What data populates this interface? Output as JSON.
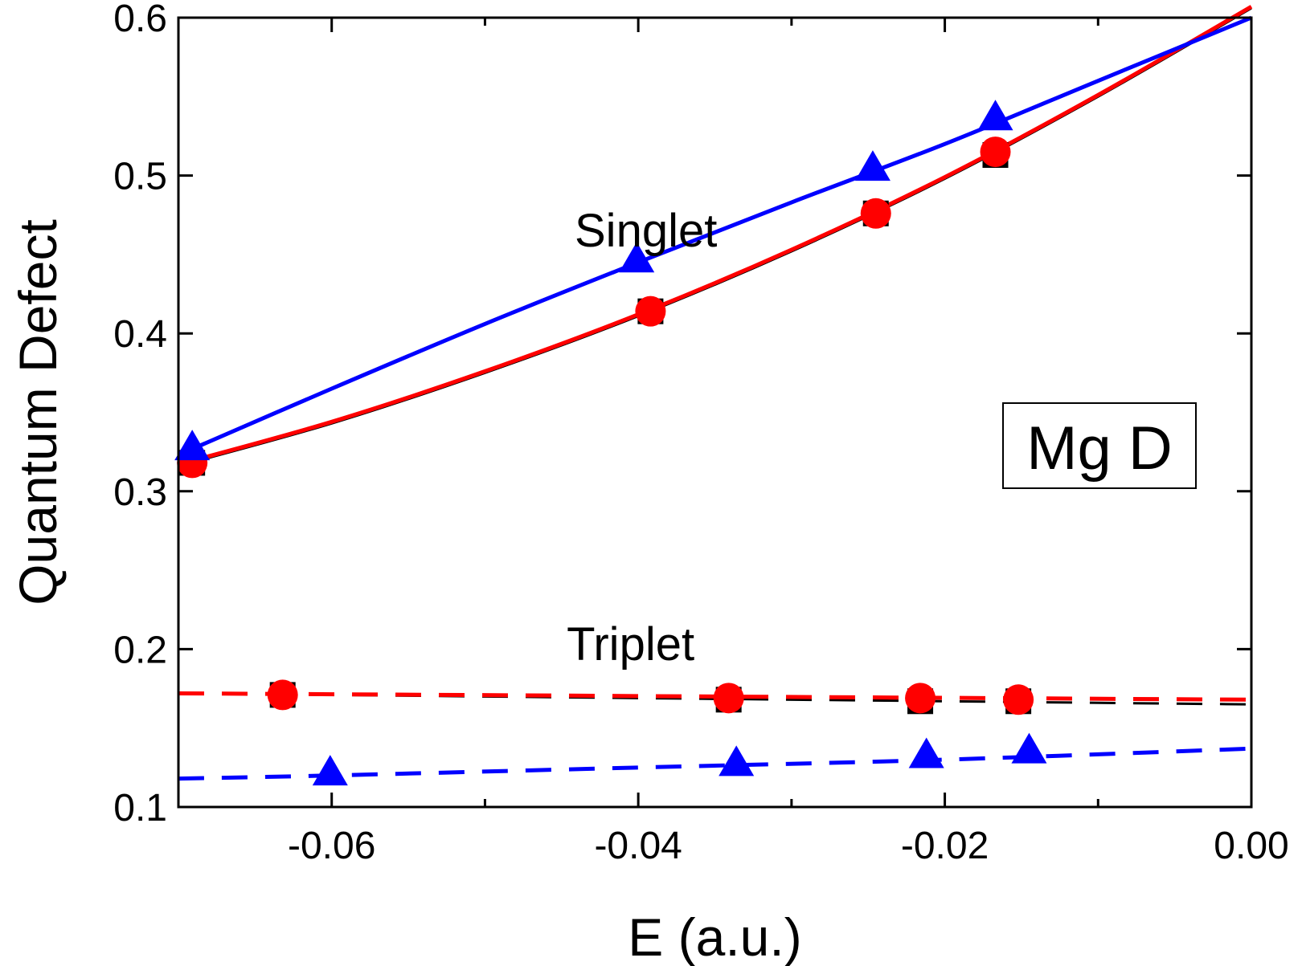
{
  "chart_data": {
    "type": "line",
    "xlabel": "E (a.u.)",
    "ylabel": "Quantum Defect",
    "xlim": [
      -0.07,
      0.0
    ],
    "ylim": [
      0.1,
      0.6
    ],
    "x_ticks": [
      -0.06,
      -0.04,
      -0.02,
      0.0
    ],
    "x_tick_labels": [
      "-0.06",
      "-0.04",
      "-0.02",
      "0.00"
    ],
    "x_minor_ticks": [
      -0.07,
      -0.05,
      -0.03,
      -0.01
    ],
    "y_ticks": [
      0.1,
      0.2,
      0.3,
      0.4,
      0.5,
      0.6
    ],
    "y_tick_labels": [
      "0.1",
      "0.2",
      "0.3",
      "0.4",
      "0.5",
      "0.6"
    ],
    "grid": false,
    "annotations": [
      {
        "text": "Singlet",
        "x": -0.0395,
        "y": 0.455
      },
      {
        "text": "Triplet",
        "x": -0.0405,
        "y": 0.193
      }
    ],
    "legend_box": {
      "text": "Mg D",
      "placement": "center-right"
    },
    "colors": {
      "black": "#000000",
      "red": "#ff0000",
      "blue": "#0000ff"
    },
    "series": [
      {
        "group": "singlet",
        "color": "#000000",
        "marker": "square",
        "line": "solid",
        "points": [
          [
            -0.0691,
            0.318
          ],
          [
            -0.0392,
            0.414
          ],
          [
            -0.0245,
            0.476
          ],
          [
            -0.0167,
            0.513
          ]
        ],
        "curve": [
          [
            -0.07,
            0.316
          ],
          [
            -0.06,
            0.343
          ],
          [
            -0.05,
            0.375
          ],
          [
            -0.04,
            0.411
          ],
          [
            -0.03,
            0.452
          ],
          [
            -0.02,
            0.498
          ],
          [
            -0.01,
            0.55
          ],
          [
            0.0,
            0.606
          ]
        ]
      },
      {
        "group": "singlet",
        "color": "#ff0000",
        "marker": "circle",
        "line": "solid",
        "points": [
          [
            -0.0691,
            0.318
          ],
          [
            -0.0392,
            0.414
          ],
          [
            -0.0245,
            0.476
          ],
          [
            -0.0167,
            0.515
          ]
        ],
        "curve": [
          [
            -0.07,
            0.317
          ],
          [
            -0.06,
            0.344
          ],
          [
            -0.05,
            0.376
          ],
          [
            -0.04,
            0.412
          ],
          [
            -0.03,
            0.453
          ],
          [
            -0.02,
            0.499
          ],
          [
            -0.01,
            0.551
          ],
          [
            0.0,
            0.607
          ]
        ]
      },
      {
        "group": "singlet",
        "color": "#0000ff",
        "marker": "triangle",
        "line": "solid",
        "points": [
          [
            -0.0691,
            0.327
          ],
          [
            -0.0401,
            0.446
          ],
          [
            -0.0247,
            0.504
          ],
          [
            -0.0167,
            0.536
          ]
        ],
        "curve": [
          [
            -0.07,
            0.323
          ],
          [
            -0.06,
            0.365
          ],
          [
            -0.05,
            0.406
          ],
          [
            -0.04,
            0.445
          ],
          [
            -0.03,
            0.483
          ],
          [
            -0.02,
            0.52
          ],
          [
            -0.01,
            0.56
          ],
          [
            0.0,
            0.6
          ]
        ]
      },
      {
        "group": "triplet",
        "color": "#000000",
        "marker": "square",
        "line": "dashed",
        "points": [
          [
            -0.0632,
            0.171
          ],
          [
            -0.0341,
            0.168
          ],
          [
            -0.0216,
            0.167
          ],
          [
            -0.0152,
            0.167
          ]
        ],
        "curve": [
          [
            -0.07,
            0.172
          ],
          [
            0.0,
            0.165
          ]
        ]
      },
      {
        "group": "triplet",
        "color": "#ff0000",
        "marker": "circle",
        "line": "dashed",
        "points": [
          [
            -0.0632,
            0.171
          ],
          [
            -0.0341,
            0.169
          ],
          [
            -0.0216,
            0.169
          ],
          [
            -0.0152,
            0.168
          ]
        ],
        "curve": [
          [
            -0.07,
            0.172
          ],
          [
            0.0,
            0.168
          ]
        ]
      },
      {
        "group": "triplet",
        "color": "#0000ff",
        "marker": "triangle",
        "line": "dashed",
        "points": [
          [
            -0.0601,
            0.121
          ],
          [
            -0.0336,
            0.127
          ],
          [
            -0.0212,
            0.132
          ],
          [
            -0.0145,
            0.135
          ]
        ],
        "curve": [
          [
            -0.07,
            0.118
          ],
          [
            -0.06,
            0.12
          ],
          [
            -0.04,
            0.125
          ],
          [
            -0.02,
            0.13
          ],
          [
            0.0,
            0.137
          ]
        ]
      }
    ]
  }
}
